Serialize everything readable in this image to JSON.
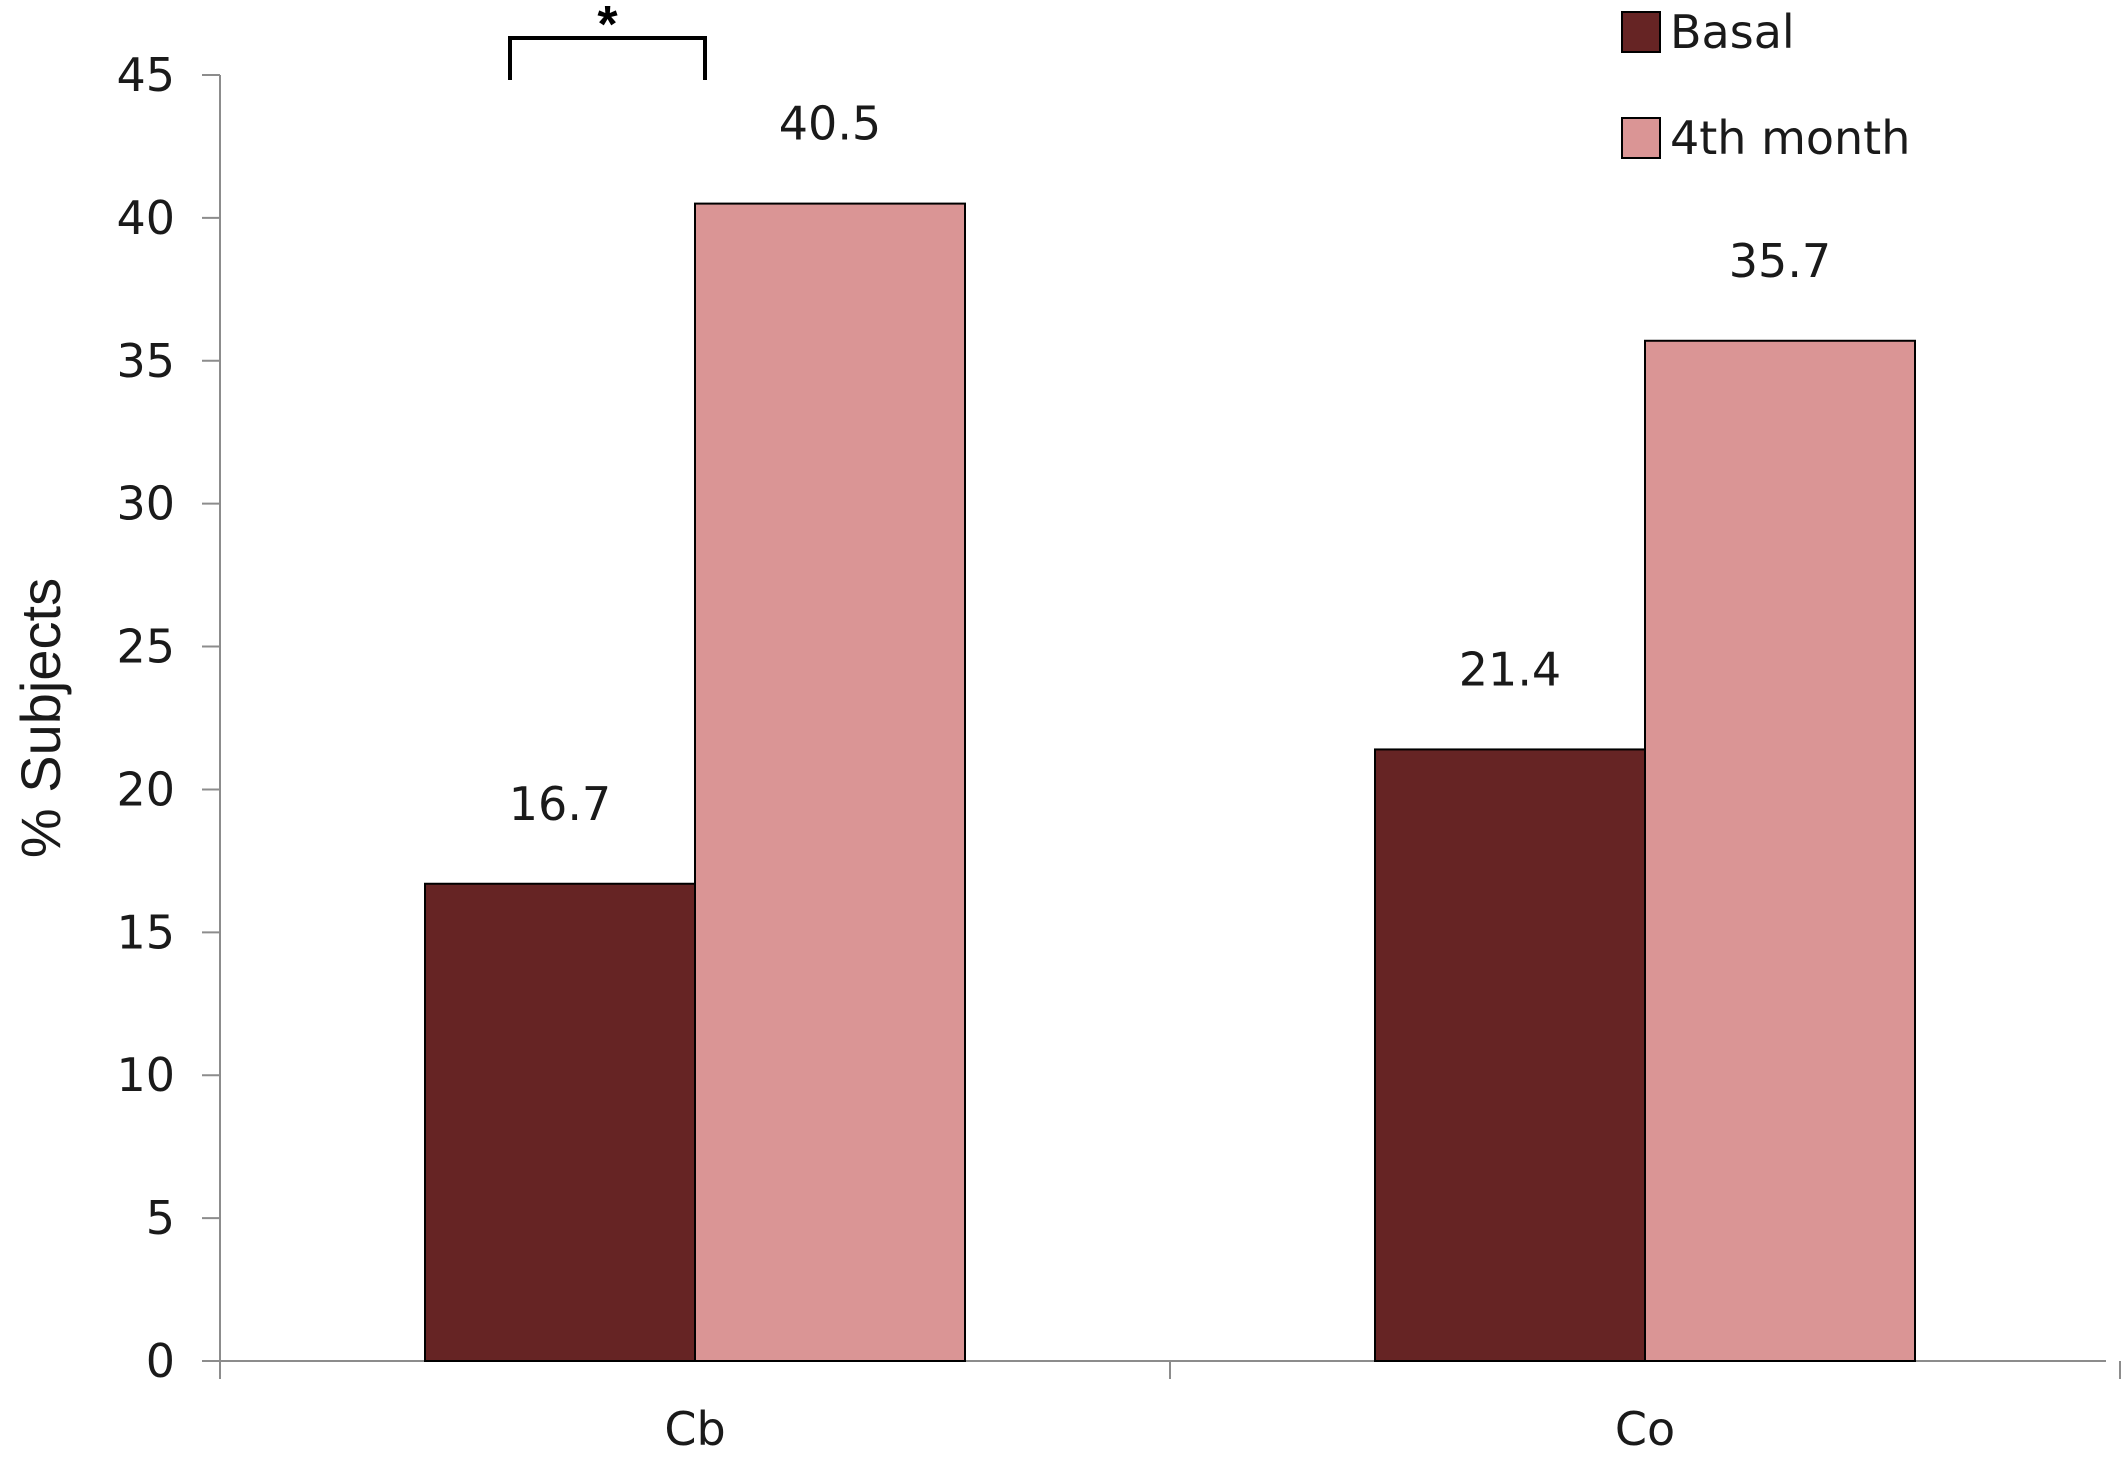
{
  "chart_data": {
    "type": "bar",
    "title": "",
    "xlabel": "",
    "ylabel": "% Subjects",
    "ylim": [
      0,
      45
    ],
    "yticks": [
      0,
      5,
      10,
      15,
      20,
      25,
      30,
      35,
      40,
      45
    ],
    "grid": false,
    "legend_position": "top-right",
    "categories": [
      "Cb",
      "Co"
    ],
    "series": [
      {
        "name": "Basal",
        "color": "#662424",
        "values": [
          16.7,
          21.4
        ],
        "labels": [
          "16.7",
          "21.4"
        ]
      },
      {
        "name": "4th month",
        "color": "#da9595",
        "values": [
          40.5,
          35.7
        ],
        "labels": [
          "40.5",
          "35.7"
        ]
      }
    ],
    "annotations": [
      {
        "type": "significance-bracket",
        "text": "*",
        "category": "Cb"
      }
    ]
  }
}
